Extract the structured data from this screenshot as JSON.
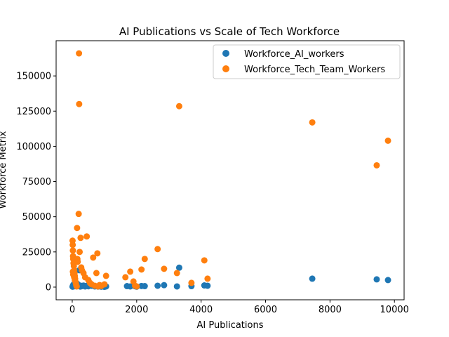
{
  "chart_data": {
    "type": "scatter",
    "title": "AI Publications vs Scale of Tech Workforce",
    "xlabel": "AI Publications",
    "ylabel": "Workforce Metrix",
    "xlim": [
      -500,
      10300
    ],
    "ylim": [
      -9000,
      175000
    ],
    "xticks": [
      0,
      2000,
      4000,
      6000,
      8000,
      10000
    ],
    "yticks": [
      0,
      25000,
      50000,
      75000,
      100000,
      125000,
      150000
    ],
    "grid": false,
    "legend_position": "top-right",
    "series": [
      {
        "name": "Workforce_AI_workers",
        "color": "#1f77b4",
        "points": [
          [
            10,
            300
          ],
          [
            20,
            800
          ],
          [
            30,
            1500
          ],
          [
            40,
            500
          ],
          [
            50,
            2000
          ],
          [
            60,
            1000
          ],
          [
            80,
            3000
          ],
          [
            100,
            1200
          ],
          [
            120,
            600
          ],
          [
            150,
            2500
          ],
          [
            180,
            800
          ],
          [
            200,
            1500
          ],
          [
            220,
            12000
          ],
          [
            250,
            400
          ],
          [
            280,
            900
          ],
          [
            300,
            700
          ],
          [
            350,
            1100
          ],
          [
            400,
            500
          ],
          [
            450,
            900
          ],
          [
            500,
            600
          ],
          [
            600,
            1000
          ],
          [
            700,
            500
          ],
          [
            800,
            400
          ],
          [
            900,
            300
          ],
          [
            1000,
            200
          ],
          [
            1050,
            500
          ],
          [
            1700,
            700
          ],
          [
            1800,
            500
          ],
          [
            1950,
            600
          ],
          [
            2000,
            300
          ],
          [
            2150,
            800
          ],
          [
            2250,
            700
          ],
          [
            2650,
            1000
          ],
          [
            2850,
            1400
          ],
          [
            3250,
            500
          ],
          [
            3320,
            13800
          ],
          [
            3700,
            700
          ],
          [
            4100,
            1200
          ],
          [
            4200,
            1000
          ],
          [
            7450,
            6000
          ],
          [
            9450,
            5500
          ],
          [
            9800,
            5000
          ]
        ]
      },
      {
        "name": "Workforce_Tech_Team_Workers",
        "color": "#ff7f0e",
        "points": [
          [
            10,
            33000
          ],
          [
            15,
            30000
          ],
          [
            20,
            26000
          ],
          [
            25,
            22000
          ],
          [
            30,
            20000
          ],
          [
            40,
            17000
          ],
          [
            50,
            15000
          ],
          [
            60,
            12000
          ],
          [
            70,
            10000
          ],
          [
            80,
            8000
          ],
          [
            90,
            6000
          ],
          [
            100,
            4000
          ],
          [
            110,
            3000
          ],
          [
            120,
            2000
          ],
          [
            130,
            1000
          ],
          [
            140,
            500
          ],
          [
            20,
            11000
          ],
          [
            30,
            9000
          ],
          [
            60,
            7000
          ],
          [
            80,
            5000
          ],
          [
            150,
            42000
          ],
          [
            160,
            20000
          ],
          [
            170,
            18000
          ],
          [
            200,
            52000
          ],
          [
            210,
            166000
          ],
          [
            215,
            130000
          ],
          [
            230,
            25000
          ],
          [
            260,
            35000
          ],
          [
            280,
            14000
          ],
          [
            300,
            12000
          ],
          [
            350,
            10000
          ],
          [
            400,
            7000
          ],
          [
            450,
            36000
          ],
          [
            500,
            5000
          ],
          [
            550,
            3000
          ],
          [
            600,
            2000
          ],
          [
            650,
            21000
          ],
          [
            700,
            1000
          ],
          [
            750,
            10000
          ],
          [
            780,
            24000
          ],
          [
            800,
            500
          ],
          [
            850,
            1500
          ],
          [
            900,
            800
          ],
          [
            1000,
            2000
          ],
          [
            1050,
            8000
          ],
          [
            1650,
            7000
          ],
          [
            1800,
            11000
          ],
          [
            1900,
            4000
          ],
          [
            1950,
            1000
          ],
          [
            2000,
            500
          ],
          [
            2150,
            12500
          ],
          [
            2250,
            20000
          ],
          [
            2650,
            27000
          ],
          [
            2850,
            13000
          ],
          [
            3250,
            10000
          ],
          [
            3320,
            128500
          ],
          [
            3700,
            3000
          ],
          [
            4100,
            19000
          ],
          [
            4200,
            6000
          ],
          [
            7450,
            117000
          ],
          [
            9450,
            86500
          ],
          [
            9800,
            104000
          ]
        ]
      }
    ]
  }
}
